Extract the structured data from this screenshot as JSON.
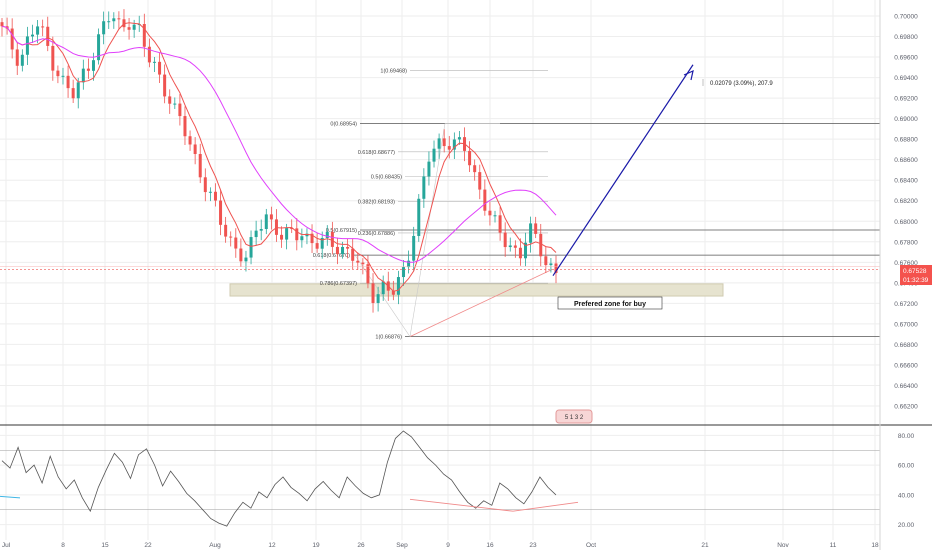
{
  "colors": {
    "up": "#26a69a",
    "down": "#ef5350",
    "ma_fast": "#ef5350",
    "ma_slow": "#e040fb",
    "fib_lines": "#9e9e9e",
    "zone": "#e6e3cf",
    "arrow": "#1a1aa8",
    "price_line": "#ef5350",
    "price_tag": "#f4524d",
    "rsi_line": "#555555",
    "rsi_trend": "#f08a8a",
    "grid": "#eeeeee",
    "axis_text": "#5d606b"
  },
  "chart_data": [
    {
      "type": "candlestick",
      "title": "",
      "price_axis": {
        "range": [
          0.6598,
          0.7008
        ],
        "ticks": [
          "0.70000",
          "0.69800",
          "0.69600",
          "0.69400",
          "0.69200",
          "0.69000",
          "0.68800",
          "0.68600",
          "0.68400",
          "0.68200",
          "0.68000",
          "0.67800",
          "0.67600",
          "0.67400",
          "0.67200",
          "0.67000",
          "0.66800",
          "0.66600",
          "0.66400",
          "0.66200"
        ]
      },
      "time_axis": {
        "labels": [
          "Jul",
          "8",
          "15",
          "22",
          "Aug",
          "12",
          "19",
          "26",
          "Sep",
          "9",
          "16",
          "23",
          "Oct",
          "21",
          "Nov",
          "11",
          "18"
        ]
      },
      "last_price": "0.67528",
      "countdown": "01:32:39",
      "fibonacci": [
        {
          "label": "1(0.69468)",
          "value": 0.69468
        },
        {
          "label": "0(0.68954)",
          "value": 0.68954
        },
        {
          "label": "0.618(0.68677)",
          "value": 0.68677
        },
        {
          "label": "0.5(0.68435)",
          "value": 0.68435
        },
        {
          "label": "0.382(0.68193)",
          "value": 0.68193
        },
        {
          "label": "0.5(0.67915)",
          "value": 0.67915
        },
        {
          "label": "0.236(0.67886)",
          "value": 0.67886
        },
        {
          "label": "0.618(0.67670)",
          "value": 0.6767
        },
        {
          "label": "0.786(0.67397)",
          "value": 0.67397
        },
        {
          "label": "1(0.66876)",
          "value": 0.66876
        }
      ],
      "zone": {
        "label": "Prefered zone for buy",
        "top": 0.6739,
        "bottom": 0.6733
      },
      "projection_label": "0.02079 (3.09%), 207.9",
      "badge_label": "5 1 3 2",
      "series": [
        {
          "type": "candles",
          "close_path": [
            0.6985,
            0.6972,
            0.6958,
            0.698,
            0.699,
            0.697,
            0.695,
            0.693,
            0.692,
            0.6945,
            0.6965,
            0.6985,
            0.7,
            0.699,
            0.6998,
            0.6985,
            0.696,
            0.695,
            0.693,
            0.6905,
            0.689,
            0.687,
            0.6845,
            0.682,
            0.68,
            0.6785,
            0.6772,
            0.676,
            0.679,
            0.681,
            0.6795,
            0.678,
            0.6788,
            0.6792,
            0.678,
            0.6775,
            0.6782,
            0.6778,
            0.677,
            0.676,
            0.6745,
            0.673,
            0.6735,
            0.6728,
            0.6745,
            0.678,
            0.682,
            0.686,
            0.6875,
            0.6882,
            0.6875,
            0.6868,
            0.6845,
            0.6825,
            0.68,
            0.6782,
            0.6776,
            0.677,
            0.6792,
            0.6775,
            0.676,
            0.6753
          ]
        },
        {
          "type": "line",
          "name": "",
          "path": "fast-ma"
        },
        {
          "type": "line",
          "name": "",
          "path": "slow-ma"
        }
      ]
    },
    {
      "type": "line",
      "title": "",
      "indicator_axis": {
        "range": [
          15,
          85
        ],
        "ticks": [
          "80.00",
          "60.00",
          "40.00",
          "20.00"
        ],
        "levels": [
          70,
          30
        ]
      },
      "values": [
        63,
        58,
        72,
        55,
        60,
        48,
        66,
        52,
        44,
        50,
        38,
        29,
        45,
        57,
        68,
        62,
        51,
        67,
        71,
        60,
        46,
        56,
        49,
        41,
        36,
        30,
        24,
        21,
        19,
        28,
        35,
        31,
        42,
        38,
        47,
        52,
        45,
        41,
        36,
        44,
        49,
        43,
        38,
        52,
        46,
        41,
        38,
        40,
        62,
        78,
        83,
        79,
        72,
        65,
        60,
        54,
        50,
        42,
        35,
        31,
        36,
        33,
        48,
        44,
        38,
        34,
        42,
        52,
        45,
        40
      ]
    }
  ]
}
